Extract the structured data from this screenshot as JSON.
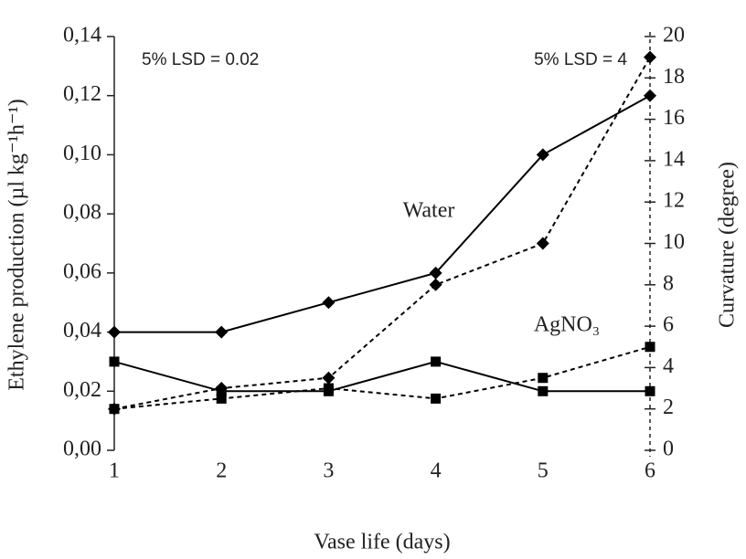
{
  "chart_data": {
    "type": "line",
    "xlabel": "Vase life (days)",
    "ylabel": "Ethylene production (µl kg⁻¹h⁻¹)",
    "y2label": "Curvature (degree)",
    "categories": [
      "1",
      "2",
      "3",
      "4",
      "5",
      "6"
    ],
    "series": [
      {
        "color": "#000000",
        "line": "solid",
        "marker": "diamond",
        "values": [
          0.04,
          0.04,
          0.05,
          0.06,
          0.1,
          0.12
        ]
      },
      {
        "color": "#000000",
        "line": "solid",
        "marker": "square",
        "values": [
          0.03,
          0.02,
          0.02,
          0.03,
          0.02,
          0.02
        ]
      },
      {
        "color": "#000000",
        "line": "dashed",
        "marker": "diamond",
        "axis": "y2",
        "values": [
          2,
          3,
          3.5,
          8,
          10,
          19
        ]
      },
      {
        "color": "#000000",
        "line": "dashed",
        "marker": "square",
        "axis": "y2",
        "values": [
          2,
          2.5,
          3,
          2.5,
          3.5,
          5
        ]
      }
    ],
    "ylim": [
      0,
      0.14
    ],
    "yticks": [
      {
        "value": 0,
        "label": "0,00"
      },
      {
        "value": 0.02,
        "label": "0,02"
      },
      {
        "value": 0.04,
        "label": "0,04"
      },
      {
        "value": 0.06,
        "label": "0,06"
      },
      {
        "value": 0.08,
        "label": "0,08"
      },
      {
        "value": 0.1,
        "label": "0,10"
      },
      {
        "value": 0.12,
        "label": "0,12"
      },
      {
        "value": 0.14,
        "label": "0,14"
      }
    ],
    "y2lim": [
      0,
      20
    ],
    "y2ticks": [
      0,
      2,
      4,
      6,
      8,
      10,
      12,
      14,
      16,
      18,
      20
    ],
    "annotations": [
      "Water",
      "AgNO₃",
      "5% LSD = 0.02",
      "5% LSD = 4"
    ]
  }
}
